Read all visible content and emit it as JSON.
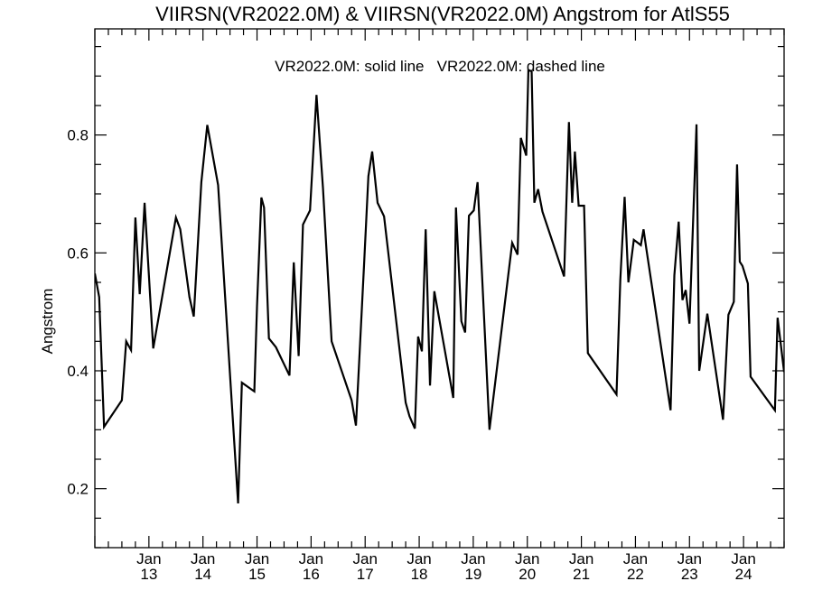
{
  "chart_data": {
    "type": "line",
    "title": "VIIRSN(VR2022.0M) & VIIRSN(VR2022.0M)  Angstrom for AtlS55",
    "annotation": "VR2022.0M: solid line   VR2022.0M: dashed line",
    "xlabel": "",
    "ylabel": "Angstrom",
    "xlim": [
      12.0,
      24.75
    ],
    "ylim": [
      0.1,
      0.98
    ],
    "grid": false,
    "legend": "none",
    "x_ticks": [
      {
        "value": 13,
        "month": "Jan",
        "day": "13"
      },
      {
        "value": 14,
        "month": "Jan",
        "day": "14"
      },
      {
        "value": 15,
        "month": "Jan",
        "day": "15"
      },
      {
        "value": 16,
        "month": "Jan",
        "day": "16"
      },
      {
        "value": 17,
        "month": "Jan",
        "day": "17"
      },
      {
        "value": 18,
        "month": "Jan",
        "day": "18"
      },
      {
        "value": 19,
        "month": "Jan",
        "day": "19"
      },
      {
        "value": 20,
        "month": "Jan",
        "day": "20"
      },
      {
        "value": 21,
        "month": "Jan",
        "day": "21"
      },
      {
        "value": 22,
        "month": "Jan",
        "day": "22"
      },
      {
        "value": 23,
        "month": "Jan",
        "day": "23"
      },
      {
        "value": 24,
        "month": "Jan",
        "day": "24"
      }
    ],
    "y_ticks": [
      {
        "value": 0.2,
        "label": "0.2"
      },
      {
        "value": 0.4,
        "label": "0.4"
      },
      {
        "value": 0.6,
        "label": "0.6"
      },
      {
        "value": 0.8,
        "label": "0.8"
      }
    ],
    "series": [
      {
        "style": "solid",
        "color": "#000000",
        "x": [
          12.0,
          12.08,
          12.17,
          12.5,
          12.58,
          12.67,
          12.75,
          12.83,
          12.92,
          13.08,
          13.5,
          13.58,
          13.75,
          13.83,
          13.97,
          14.08,
          14.28,
          14.65,
          14.72,
          14.95,
          15.0,
          15.08,
          15.13,
          15.22,
          15.35,
          15.6,
          15.68,
          15.77,
          15.85,
          15.98,
          16.1,
          16.22,
          16.38,
          16.75,
          16.83,
          16.98,
          17.06,
          17.13,
          17.23,
          17.35,
          17.75,
          17.82,
          17.92,
          17.98,
          18.05,
          18.12,
          18.2,
          18.28,
          18.63,
          18.68,
          18.78,
          18.85,
          18.92,
          19.01,
          19.08,
          19.3,
          19.72,
          19.82,
          19.88,
          19.98,
          20.02,
          20.08,
          20.13,
          20.2,
          20.28,
          20.68,
          20.77,
          20.83,
          20.88,
          20.95,
          21.05,
          21.12,
          21.65,
          21.72,
          21.8,
          21.87,
          21.97,
          22.03,
          22.1,
          22.15,
          22.2,
          22.65,
          22.72,
          22.8,
          22.87,
          22.93,
          23.0,
          23.13,
          23.18,
          23.33,
          23.62,
          23.72,
          23.82,
          23.88,
          23.93,
          23.98,
          24.08,
          24.13,
          24.58,
          24.63,
          24.75
        ],
        "y": [
          0.565,
          0.525,
          0.305,
          0.35,
          0.45,
          0.435,
          0.66,
          0.53,
          0.685,
          0.438,
          0.66,
          0.64,
          0.525,
          0.492,
          0.72,
          0.817,
          0.715,
          0.175,
          0.38,
          0.365,
          0.51,
          0.694,
          0.677,
          0.455,
          0.44,
          0.392,
          0.584,
          0.425,
          0.648,
          0.672,
          0.868,
          0.71,
          0.45,
          0.35,
          0.307,
          0.58,
          0.73,
          0.772,
          0.685,
          0.662,
          0.346,
          0.323,
          0.302,
          0.458,
          0.433,
          0.64,
          0.375,
          0.535,
          0.354,
          0.677,
          0.484,
          0.465,
          0.663,
          0.672,
          0.72,
          0.3,
          0.617,
          0.597,
          0.795,
          0.765,
          0.91,
          0.908,
          0.685,
          0.708,
          0.67,
          0.56,
          0.822,
          0.685,
          0.772,
          0.68,
          0.68,
          0.43,
          0.36,
          0.554,
          0.695,
          0.55,
          0.622,
          0.618,
          0.613,
          0.64,
          0.608,
          0.333,
          0.562,
          0.653,
          0.52,
          0.537,
          0.48,
          0.818,
          0.4,
          0.497,
          0.317,
          0.495,
          0.517,
          0.75,
          0.585,
          0.578,
          0.548,
          0.39,
          0.333,
          0.49,
          0.398
        ]
      }
    ]
  }
}
